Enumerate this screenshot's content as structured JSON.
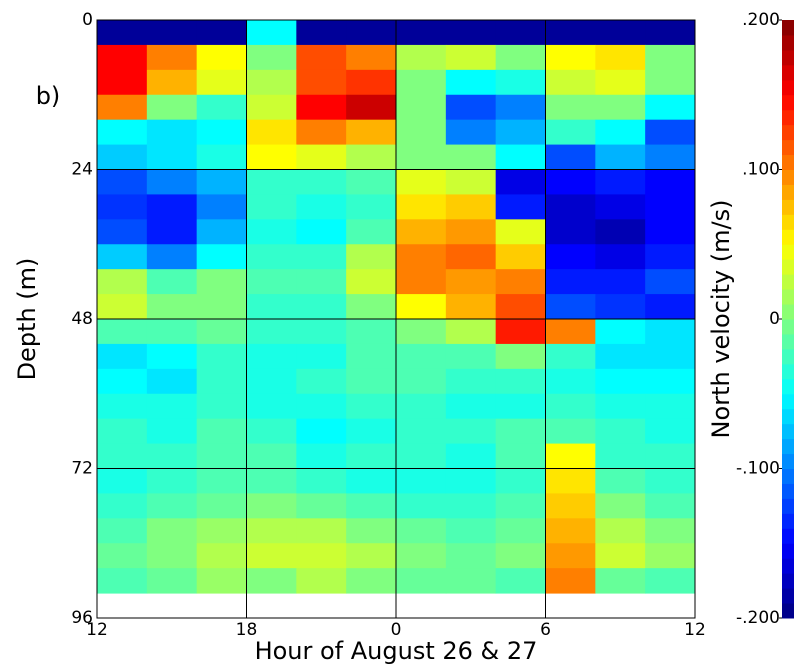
{
  "chart_data": {
    "type": "heatmap",
    "annotation": "b)",
    "x_label": "Hour of August 26 & 27",
    "y_label": "Depth (m)",
    "colorbar_label": "North velocity (m/s)",
    "colormap": "jet",
    "grid": true,
    "x": [
      12,
      14,
      16,
      18,
      20,
      22,
      24,
      26,
      28,
      30,
      32,
      34,
      36
    ],
    "y": [
      0,
      4,
      8,
      12,
      16,
      20,
      24,
      28,
      32,
      36,
      40,
      44,
      48,
      52,
      56,
      60,
      64,
      68,
      72,
      76,
      80,
      84,
      88,
      92
    ],
    "xlim": [
      12,
      36
    ],
    "xticks": [
      12,
      18,
      {
        "value": 24,
        "label": "0"
      },
      {
        "value": 30,
        "label": "6"
      },
      {
        "value": 36,
        "label": "12"
      }
    ],
    "ylim": [
      96,
      0
    ],
    "yticks": [
      0,
      24,
      48,
      72,
      96
    ],
    "clim": [
      -0.2,
      0.2
    ],
    "cticks": [
      {
        "value": 0.2,
        "label": ".200"
      },
      {
        "value": 0.1,
        "label": ".100"
      },
      0,
      {
        "value": -0.1,
        "label": "-.100"
      },
      {
        "value": -0.2,
        "label": "-.200"
      }
    ],
    "values": [
      [
        -0.19,
        -0.19,
        -0.19,
        -0.05,
        -0.19,
        -0.19,
        -0.19,
        -0.19,
        -0.19,
        -0.19,
        -0.19,
        -0.19
      ],
      [
        0.15,
        0.1,
        0.05,
        0.0,
        0.12,
        0.1,
        0.02,
        0.03,
        0.0,
        0.05,
        0.06,
        0.0
      ],
      [
        0.15,
        0.08,
        0.04,
        0.02,
        0.12,
        0.13,
        0.0,
        -0.05,
        -0.04,
        0.03,
        0.04,
        0.0
      ],
      [
        0.1,
        0.0,
        -0.03,
        0.03,
        0.15,
        0.17,
        0.0,
        -0.12,
        -0.1,
        0.0,
        0.0,
        -0.05
      ],
      [
        -0.05,
        -0.06,
        -0.05,
        0.06,
        0.1,
        0.08,
        0.0,
        -0.1,
        -0.08,
        -0.03,
        -0.05,
        -0.12
      ],
      [
        -0.07,
        -0.06,
        -0.04,
        0.05,
        0.04,
        0.02,
        0.0,
        0.0,
        -0.05,
        -0.12,
        -0.08,
        -0.1
      ],
      [
        -0.12,
        -0.1,
        -0.08,
        -0.03,
        -0.03,
        -0.02,
        0.04,
        0.03,
        -0.16,
        -0.15,
        -0.14,
        -0.15
      ],
      [
        -0.13,
        -0.14,
        -0.1,
        -0.03,
        -0.04,
        -0.03,
        0.06,
        0.07,
        -0.14,
        -0.17,
        -0.16,
        -0.15
      ],
      [
        -0.12,
        -0.14,
        -0.08,
        -0.04,
        -0.05,
        -0.02,
        0.08,
        0.09,
        0.04,
        -0.17,
        -0.18,
        -0.15
      ],
      [
        -0.07,
        -0.1,
        -0.05,
        -0.03,
        -0.03,
        0.02,
        0.1,
        0.11,
        0.07,
        -0.15,
        -0.16,
        -0.14
      ],
      [
        0.02,
        -0.02,
        0.0,
        -0.02,
        -0.02,
        0.03,
        0.1,
        0.09,
        0.1,
        -0.14,
        -0.14,
        -0.12
      ],
      [
        0.03,
        0.0,
        0.0,
        -0.03,
        -0.03,
        0.0,
        0.05,
        0.08,
        0.12,
        -0.12,
        -0.13,
        -0.14
      ],
      [
        -0.02,
        -0.02,
        -0.01,
        -0.03,
        -0.03,
        -0.02,
        0.0,
        0.02,
        0.14,
        0.1,
        -0.05,
        -0.06
      ],
      [
        -0.06,
        -0.05,
        -0.03,
        -0.04,
        -0.04,
        -0.02,
        -0.02,
        -0.02,
        0.0,
        -0.03,
        -0.06,
        -0.06
      ],
      [
        -0.05,
        -0.06,
        -0.03,
        -0.04,
        -0.03,
        -0.02,
        -0.02,
        -0.03,
        -0.03,
        -0.04,
        -0.05,
        -0.05
      ],
      [
        -0.04,
        -0.04,
        -0.03,
        -0.04,
        -0.04,
        -0.03,
        -0.03,
        -0.04,
        -0.04,
        -0.03,
        -0.04,
        -0.04
      ],
      [
        -0.03,
        -0.04,
        -0.02,
        -0.03,
        -0.05,
        -0.04,
        -0.03,
        -0.03,
        -0.02,
        -0.02,
        -0.03,
        -0.04
      ],
      [
        -0.03,
        -0.03,
        -0.02,
        -0.02,
        -0.04,
        -0.03,
        -0.03,
        -0.04,
        -0.02,
        0.05,
        -0.03,
        -0.03
      ],
      [
        -0.04,
        -0.03,
        -0.02,
        -0.02,
        -0.03,
        -0.04,
        -0.04,
        -0.04,
        -0.03,
        0.06,
        -0.02,
        -0.03
      ],
      [
        -0.03,
        -0.02,
        -0.01,
        0.0,
        -0.01,
        -0.02,
        -0.03,
        -0.03,
        -0.02,
        0.07,
        0.0,
        -0.02
      ],
      [
        -0.02,
        0.0,
        0.01,
        0.02,
        0.02,
        0.0,
        -0.01,
        -0.02,
        -0.01,
        0.08,
        0.02,
        0.0
      ],
      [
        -0.01,
        0.0,
        0.02,
        0.03,
        0.03,
        0.02,
        0.0,
        -0.01,
        0.0,
        0.09,
        0.03,
        0.01
      ],
      [
        -0.02,
        -0.01,
        0.01,
        0.0,
        0.02,
        0.0,
        -0.01,
        -0.01,
        -0.02,
        0.1,
        -0.01,
        -0.02
      ]
    ]
  }
}
